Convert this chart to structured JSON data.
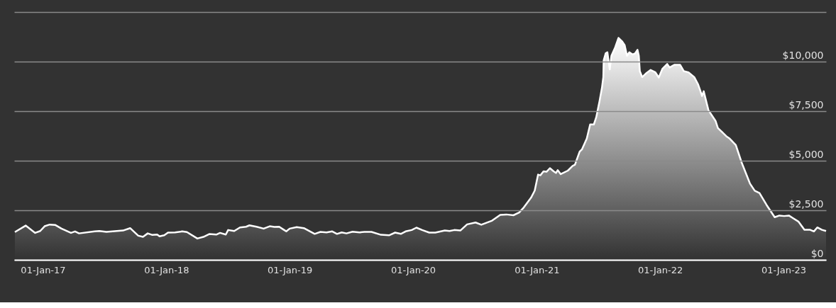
{
  "chart_data": {
    "type": "area",
    "x": [
      "2016-10-10",
      "2016-11-11",
      "2016-12-09",
      "2016-12-24",
      "2017-01-06",
      "2017-01-21",
      "2017-02-07",
      "2017-02-25",
      "2017-03-25",
      "2017-04-06",
      "2017-04-18",
      "2017-06-03",
      "2017-06-17",
      "2017-07-08",
      "2017-08-26",
      "2017-09-16",
      "2017-10-10",
      "2017-10-24",
      "2017-11-07",
      "2017-11-21",
      "2017-12-05",
      "2017-12-12",
      "2017-12-26",
      "2018-01-06",
      "2018-01-27",
      "2018-02-17",
      "2018-03-03",
      "2018-04-03",
      "2018-04-21",
      "2018-05-08",
      "2018-05-29",
      "2018-06-09",
      "2018-06-26",
      "2018-07-03",
      "2018-07-21",
      "2018-08-07",
      "2018-08-25",
      "2018-09-04",
      "2018-09-25",
      "2018-10-16",
      "2018-11-03",
      "2018-11-17",
      "2018-12-01",
      "2018-12-15",
      "2018-12-22",
      "2019-01-01",
      "2019-01-22",
      "2019-02-12",
      "2019-03-16",
      "2019-04-02",
      "2019-04-20",
      "2019-05-07",
      "2019-05-21",
      "2019-06-04",
      "2019-06-18",
      "2019-07-06",
      "2019-07-27",
      "2019-08-10",
      "2019-08-31",
      "2019-09-28",
      "2019-10-22",
      "2019-11-09",
      "2019-11-26",
      "2019-12-10",
      "2019-12-28",
      "2020-01-11",
      "2020-01-28",
      "2020-02-18",
      "2020-03-07",
      "2020-04-04",
      "2020-04-18",
      "2020-05-02",
      "2020-05-20",
      "2020-06-09",
      "2020-07-04",
      "2020-07-21",
      "2020-08-22",
      "2020-09-15",
      "2020-10-03",
      "2020-10-24",
      "2020-11-10",
      "2020-11-24",
      "2020-12-15",
      "2020-12-26",
      "2021-01-05",
      "2021-01-12",
      "2021-01-21",
      "2021-01-30",
      "2021-02-09",
      "2021-02-20",
      "2021-02-27",
      "2021-03-04",
      "2021-03-13",
      "2021-04-03",
      "2021-04-17",
      "2021-04-24",
      "2021-05-08",
      "2021-05-15",
      "2021-05-29",
      "2021-06-08",
      "2021-06-19",
      "2021-06-26",
      "2021-07-06",
      "2021-07-13",
      "2021-07-17",
      "2021-07-18",
      "2021-07-24",
      "2021-07-29",
      "2021-08-05",
      "2021-08-10",
      "2021-08-21",
      "2021-08-31",
      "2021-09-11",
      "2021-09-18",
      "2021-09-25",
      "2021-10-02",
      "2021-10-12",
      "2021-10-19",
      "2021-10-26",
      "2021-10-30",
      "2021-11-02",
      "2021-11-09",
      "2021-11-20",
      "2021-12-04",
      "2021-12-18",
      "2021-12-28",
      "2022-01-08",
      "2022-01-22",
      "2022-01-29",
      "2022-02-12",
      "2022-03-01",
      "2022-03-12",
      "2022-03-26",
      "2022-04-12",
      "2022-04-23",
      "2022-04-30",
      "2022-05-05",
      "2022-05-10",
      "2022-05-24",
      "2022-06-14",
      "2022-06-21",
      "2022-07-16",
      "2022-07-26",
      "2022-08-13",
      "2022-08-30",
      "2022-09-24",
      "2022-10-08",
      "2022-10-22",
      "2022-11-12",
      "2022-12-06",
      "2022-12-20",
      "2023-01-03",
      "2023-01-17",
      "2023-01-28",
      "2023-02-14",
      "2023-03-04",
      "2023-03-21",
      "2023-04-01",
      "2023-04-11",
      "2023-04-25",
      "2023-05-07"
    ],
    "series": [
      {
        "color": "#ffffff",
        "values": [
          1400,
          1730,
          1360,
          1455,
          1695,
          1780,
          1755,
          1575,
          1360,
          1435,
          1335,
          1435,
          1455,
          1410,
          1480,
          1600,
          1220,
          1160,
          1335,
          1255,
          1275,
          1185,
          1240,
          1375,
          1385,
          1435,
          1400,
          1075,
          1160,
          1300,
          1275,
          1360,
          1275,
          1505,
          1455,
          1635,
          1670,
          1740,
          1670,
          1575,
          1695,
          1660,
          1670,
          1515,
          1435,
          1575,
          1650,
          1600,
          1310,
          1410,
          1385,
          1435,
          1310,
          1385,
          1335,
          1420,
          1385,
          1410,
          1410,
          1265,
          1240,
          1375,
          1310,
          1435,
          1505,
          1625,
          1505,
          1375,
          1375,
          1480,
          1455,
          1505,
          1480,
          1790,
          1885,
          1770,
          1980,
          2270,
          2290,
          2250,
          2390,
          2650,
          3130,
          3490,
          4300,
          4265,
          4465,
          4445,
          4625,
          4465,
          4385,
          4525,
          4325,
          4500,
          4740,
          4800,
          5460,
          5580,
          6115,
          6830,
          6830,
          7190,
          8030,
          8685,
          9220,
          10055,
          10415,
          10475,
          9605,
          10295,
          10715,
          11195,
          11015,
          10835,
          10295,
          10475,
          10360,
          10415,
          10595,
          10295,
          9520,
          9220,
          9400,
          9580,
          9460,
          9195,
          9640,
          9880,
          9700,
          9840,
          9840,
          9520,
          9460,
          9220,
          8865,
          8530,
          8265,
          8505,
          7550,
          7010,
          6650,
          6235,
          6115,
          5790,
          4920,
          3845,
          3485,
          3370,
          2770,
          2150,
          2235,
          2210,
          2235,
          2115,
          1935,
          1515,
          1515,
          1435,
          1635,
          1515,
          1455
        ]
      }
    ],
    "xlim": [
      "2016-10-08",
      "2023-05-07"
    ],
    "ylim": [
      0,
      12500
    ],
    "xticks": [
      {
        "value": "2017-01-01",
        "label": "01-Jan-17"
      },
      {
        "value": "2018-01-01",
        "label": "01-Jan-18"
      },
      {
        "value": "2019-01-01",
        "label": "01-Jan-19"
      },
      {
        "value": "2020-01-01",
        "label": "01-Jan-20"
      },
      {
        "value": "2021-01-01",
        "label": "01-Jan-21"
      },
      {
        "value": "2022-01-01",
        "label": "01-Jan-22"
      },
      {
        "value": "2023-01-01",
        "label": "01-Jan-23"
      }
    ],
    "yticks": [
      {
        "value": 0,
        "label": "$0"
      },
      {
        "value": 2500,
        "label": "$2,500"
      },
      {
        "value": 5000,
        "label": "$5,000"
      },
      {
        "value": 7500,
        "label": "$7,500"
      },
      {
        "value": 10000,
        "label": "$10,000"
      },
      {
        "value": 12500,
        "label": null
      }
    ],
    "grid": "y"
  }
}
